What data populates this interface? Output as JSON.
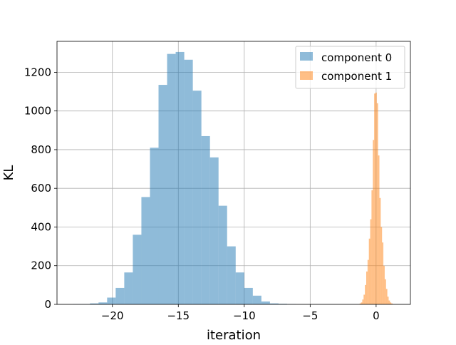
{
  "chart_data": {
    "type": "bar",
    "subtype": "histogram",
    "title": "",
    "xlabel": "iteration",
    "ylabel": "KL",
    "xlim": [
      -24.2,
      2.6
    ],
    "ylim": [
      0,
      1360
    ],
    "xticks": [
      -20,
      -15,
      -10,
      -5,
      0
    ],
    "xtick_labels": [
      "−20",
      "−15",
      "−10",
      "−5",
      "0"
    ],
    "yticks": [
      0,
      200,
      400,
      600,
      800,
      1000,
      1200
    ],
    "ytick_labels": [
      "0",
      "200",
      "400",
      "600",
      "800",
      "1000",
      "1200"
    ],
    "grid": true,
    "legend_position": "top-right",
    "series": [
      {
        "name": "component 0",
        "color": "#1f77b4",
        "opacity": 0.5,
        "bin_edges": [
          -23.0,
          -22.35,
          -21.7,
          -21.05,
          -20.4,
          -19.75,
          -19.1,
          -18.45,
          -17.8,
          -17.15,
          -16.5,
          -15.85,
          -15.2,
          -14.55,
          -13.9,
          -13.25,
          -12.6,
          -11.95,
          -11.3,
          -10.65,
          -10.0,
          -9.35,
          -8.7,
          -8.05,
          -7.4,
          -6.75,
          -6.1
        ],
        "values": [
          1,
          1,
          5,
          10,
          35,
          85,
          165,
          360,
          555,
          810,
          1135,
          1295,
          1305,
          1265,
          1105,
          870,
          760,
          510,
          300,
          165,
          85,
          45,
          15,
          5,
          3,
          1
        ]
      },
      {
        "name": "component 1",
        "color": "#ff7f0e",
        "opacity": 0.5,
        "bin_edges": [
          -1.25,
          -1.15,
          -1.05,
          -0.95,
          -0.85,
          -0.75,
          -0.65,
          -0.55,
          -0.45,
          -0.35,
          -0.25,
          -0.15,
          -0.05,
          0.05,
          0.15,
          0.25,
          0.35,
          0.45,
          0.55,
          0.65,
          0.75,
          0.85,
          0.95,
          1.05,
          1.15,
          1.25
        ],
        "values": [
          5,
          10,
          25,
          50,
          100,
          170,
          230,
          340,
          440,
          590,
          850,
          1090,
          1095,
          1040,
          770,
          550,
          400,
          320,
          200,
          130,
          80,
          40,
          20,
          10,
          5
        ]
      }
    ]
  }
}
